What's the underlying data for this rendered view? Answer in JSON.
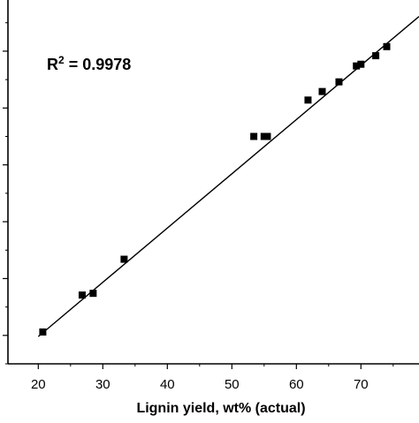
{
  "chart_data": {
    "type": "scatter",
    "xlabel": "Lignin yield, wt% (actual)",
    "ylabel": "",
    "xlim": [
      15.3,
      79
    ],
    "ylim": [
      15,
      79
    ],
    "x_ticks": [
      20,
      30,
      40,
      50,
      60,
      70
    ],
    "x_tick_labels": [
      "20",
      "30",
      "40",
      "50",
      "60",
      "70"
    ],
    "annotation": {
      "base": "R",
      "superscript": "2",
      "text": " = 0.9978"
    },
    "grid": false,
    "legend": "none",
    "marker": "square",
    "colors": {
      "marker": "#000000",
      "line": "#000000",
      "axis": "#000000"
    },
    "series": [
      {
        "points": [
          [
            20.7,
            20.6
          ],
          [
            26.8,
            27.1
          ],
          [
            28.5,
            27.4
          ],
          [
            33.3,
            33.4
          ],
          [
            53.4,
            55.0
          ],
          [
            55.0,
            55.0
          ],
          [
            55.5,
            55.0
          ],
          [
            61.8,
            61.4
          ],
          [
            64.0,
            62.9
          ],
          [
            66.6,
            64.6
          ],
          [
            69.3,
            67.4
          ],
          [
            70.0,
            67.7
          ],
          [
            72.3,
            69.2
          ],
          [
            74.0,
            70.8
          ]
        ]
      }
    ],
    "fit_line": {
      "x": [
        20.0,
        79.0
      ],
      "y": [
        19.8,
        76.1
      ]
    }
  }
}
